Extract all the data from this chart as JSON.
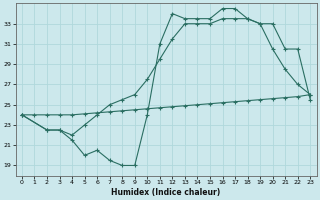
{
  "xlabel": "Humidex (Indice chaleur)",
  "xlim": [
    -0.5,
    23.5
  ],
  "ylim": [
    18,
    35
  ],
  "yticks": [
    19,
    21,
    23,
    25,
    27,
    29,
    31,
    33
  ],
  "xticks": [
    0,
    1,
    2,
    3,
    4,
    5,
    6,
    7,
    8,
    9,
    10,
    11,
    12,
    13,
    14,
    15,
    16,
    17,
    18,
    19,
    20,
    21,
    22,
    23
  ],
  "bg_color": "#cce8ec",
  "line_color": "#2a6e62",
  "grid_color": "#b0d8dc",
  "line1_x": [
    0,
    1,
    2,
    3,
    4,
    5,
    6,
    7,
    8,
    9,
    10,
    11,
    12,
    13,
    14,
    15,
    16,
    17,
    18,
    19,
    20,
    21,
    22,
    23
  ],
  "line1_y": [
    24.0,
    24.0,
    24.0,
    24.0,
    24.0,
    24.1,
    24.2,
    24.3,
    24.4,
    24.5,
    24.6,
    24.7,
    24.8,
    24.9,
    25.0,
    25.1,
    25.2,
    25.3,
    25.4,
    25.5,
    25.6,
    25.7,
    25.8,
    26.0
  ],
  "line2_x": [
    0,
    2,
    3,
    4,
    5,
    6,
    7,
    8,
    9,
    10,
    11,
    12,
    13,
    14,
    15,
    16,
    17,
    18,
    19,
    20,
    21,
    22,
    23
  ],
  "line2_y": [
    24.0,
    22.5,
    22.5,
    22.0,
    23.0,
    24.0,
    25.0,
    25.5,
    26.0,
    27.5,
    29.5,
    31.5,
    33.0,
    33.0,
    33.0,
    33.5,
    33.5,
    33.5,
    33.0,
    30.5,
    28.5,
    27.0,
    26.0
  ],
  "line3_x": [
    0,
    2,
    3,
    4,
    5,
    6,
    7,
    8,
    9,
    10,
    11,
    12,
    13,
    14,
    15,
    16,
    17,
    18,
    19,
    20,
    21,
    22,
    23
  ],
  "line3_y": [
    24.0,
    22.5,
    22.5,
    21.5,
    20.0,
    20.5,
    19.5,
    19.0,
    19.0,
    24.0,
    31.0,
    34.0,
    33.5,
    33.5,
    33.5,
    34.5,
    34.5,
    33.5,
    33.0,
    33.0,
    30.5,
    30.5,
    25.5
  ]
}
